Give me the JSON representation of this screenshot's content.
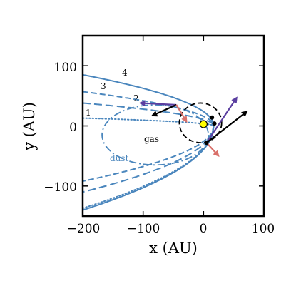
{
  "chart_data": {
    "type": "line",
    "xlabel": "x (AU)",
    "ylabel": "y (AU)",
    "xlim": [
      -200,
      100
    ],
    "ylim": [
      -150,
      150
    ],
    "xticks": [
      -200,
      -100,
      0,
      100
    ],
    "yticks": [
      -100,
      0,
      100
    ],
    "xtick_labels": [
      "−200",
      "−100",
      "0",
      "100"
    ],
    "ytick_labels": [
      "−100",
      "0",
      "100"
    ],
    "grid": false,
    "colors": {
      "orbit": "#4a86bd",
      "purple_arrow": "#5b3fa0",
      "red_arrow": "#d9706a",
      "black": "#000000",
      "star": "#ffff00"
    },
    "series": [
      {
        "label": "1",
        "style": "dotted",
        "apex_x": 17,
        "y_at_x_minus_200": 13,
        "y_at_x_minus_200_lower": -137
      },
      {
        "label": "2",
        "style": "dashed-long",
        "apex_x": 17,
        "y_at_x_minus_200": 38,
        "y_at_x_minus_200_lower": -110
      },
      {
        "label": "3",
        "style": "dashed",
        "apex_x": 17,
        "y_at_x_minus_200": 57,
        "y_at_x_minus_200_lower": -92
      },
      {
        "label": "4",
        "style": "solid",
        "apex_x": 17,
        "y_at_x_minus_200": 85,
        "y_at_x_minus_200_lower": -140
      }
    ],
    "dust_orbit": {
      "label": "dust",
      "style": "dash-dot",
      "center": [
        -80,
        -15
      ],
      "semi_axes": [
        88,
        50
      ]
    },
    "gas_orbit": {
      "label": "gas",
      "style": "dashed",
      "center": [
        -5,
        5
      ],
      "semi_axes": [
        35,
        33
      ]
    },
    "star": {
      "x": 0,
      "y": 3
    },
    "points": [
      {
        "x": 14,
        "y": 14
      },
      {
        "x": 18,
        "y": 4
      },
      {
        "x": 5,
        "y": -28
      }
    ],
    "arrows": [
      {
        "color": "purple",
        "from": [
          -45,
          35
        ],
        "to": [
          -105,
          38
        ]
      },
      {
        "color": "black",
        "from": [
          -45,
          35
        ],
        "to": [
          -85,
          17
        ]
      },
      {
        "color": "red",
        "from": [
          -45,
          35
        ],
        "to": [
          -28,
          7
        ]
      },
      {
        "color": "purple",
        "from": [
          5,
          -28
        ],
        "to": [
          55,
          47
        ]
      },
      {
        "color": "black",
        "from": [
          5,
          -28
        ],
        "to": [
          72,
          24
        ]
      },
      {
        "color": "red",
        "from": [
          5,
          -28
        ],
        "to": [
          25,
          -50
        ]
      }
    ],
    "annotations": {
      "dust": "dust",
      "gas": "gas"
    }
  }
}
